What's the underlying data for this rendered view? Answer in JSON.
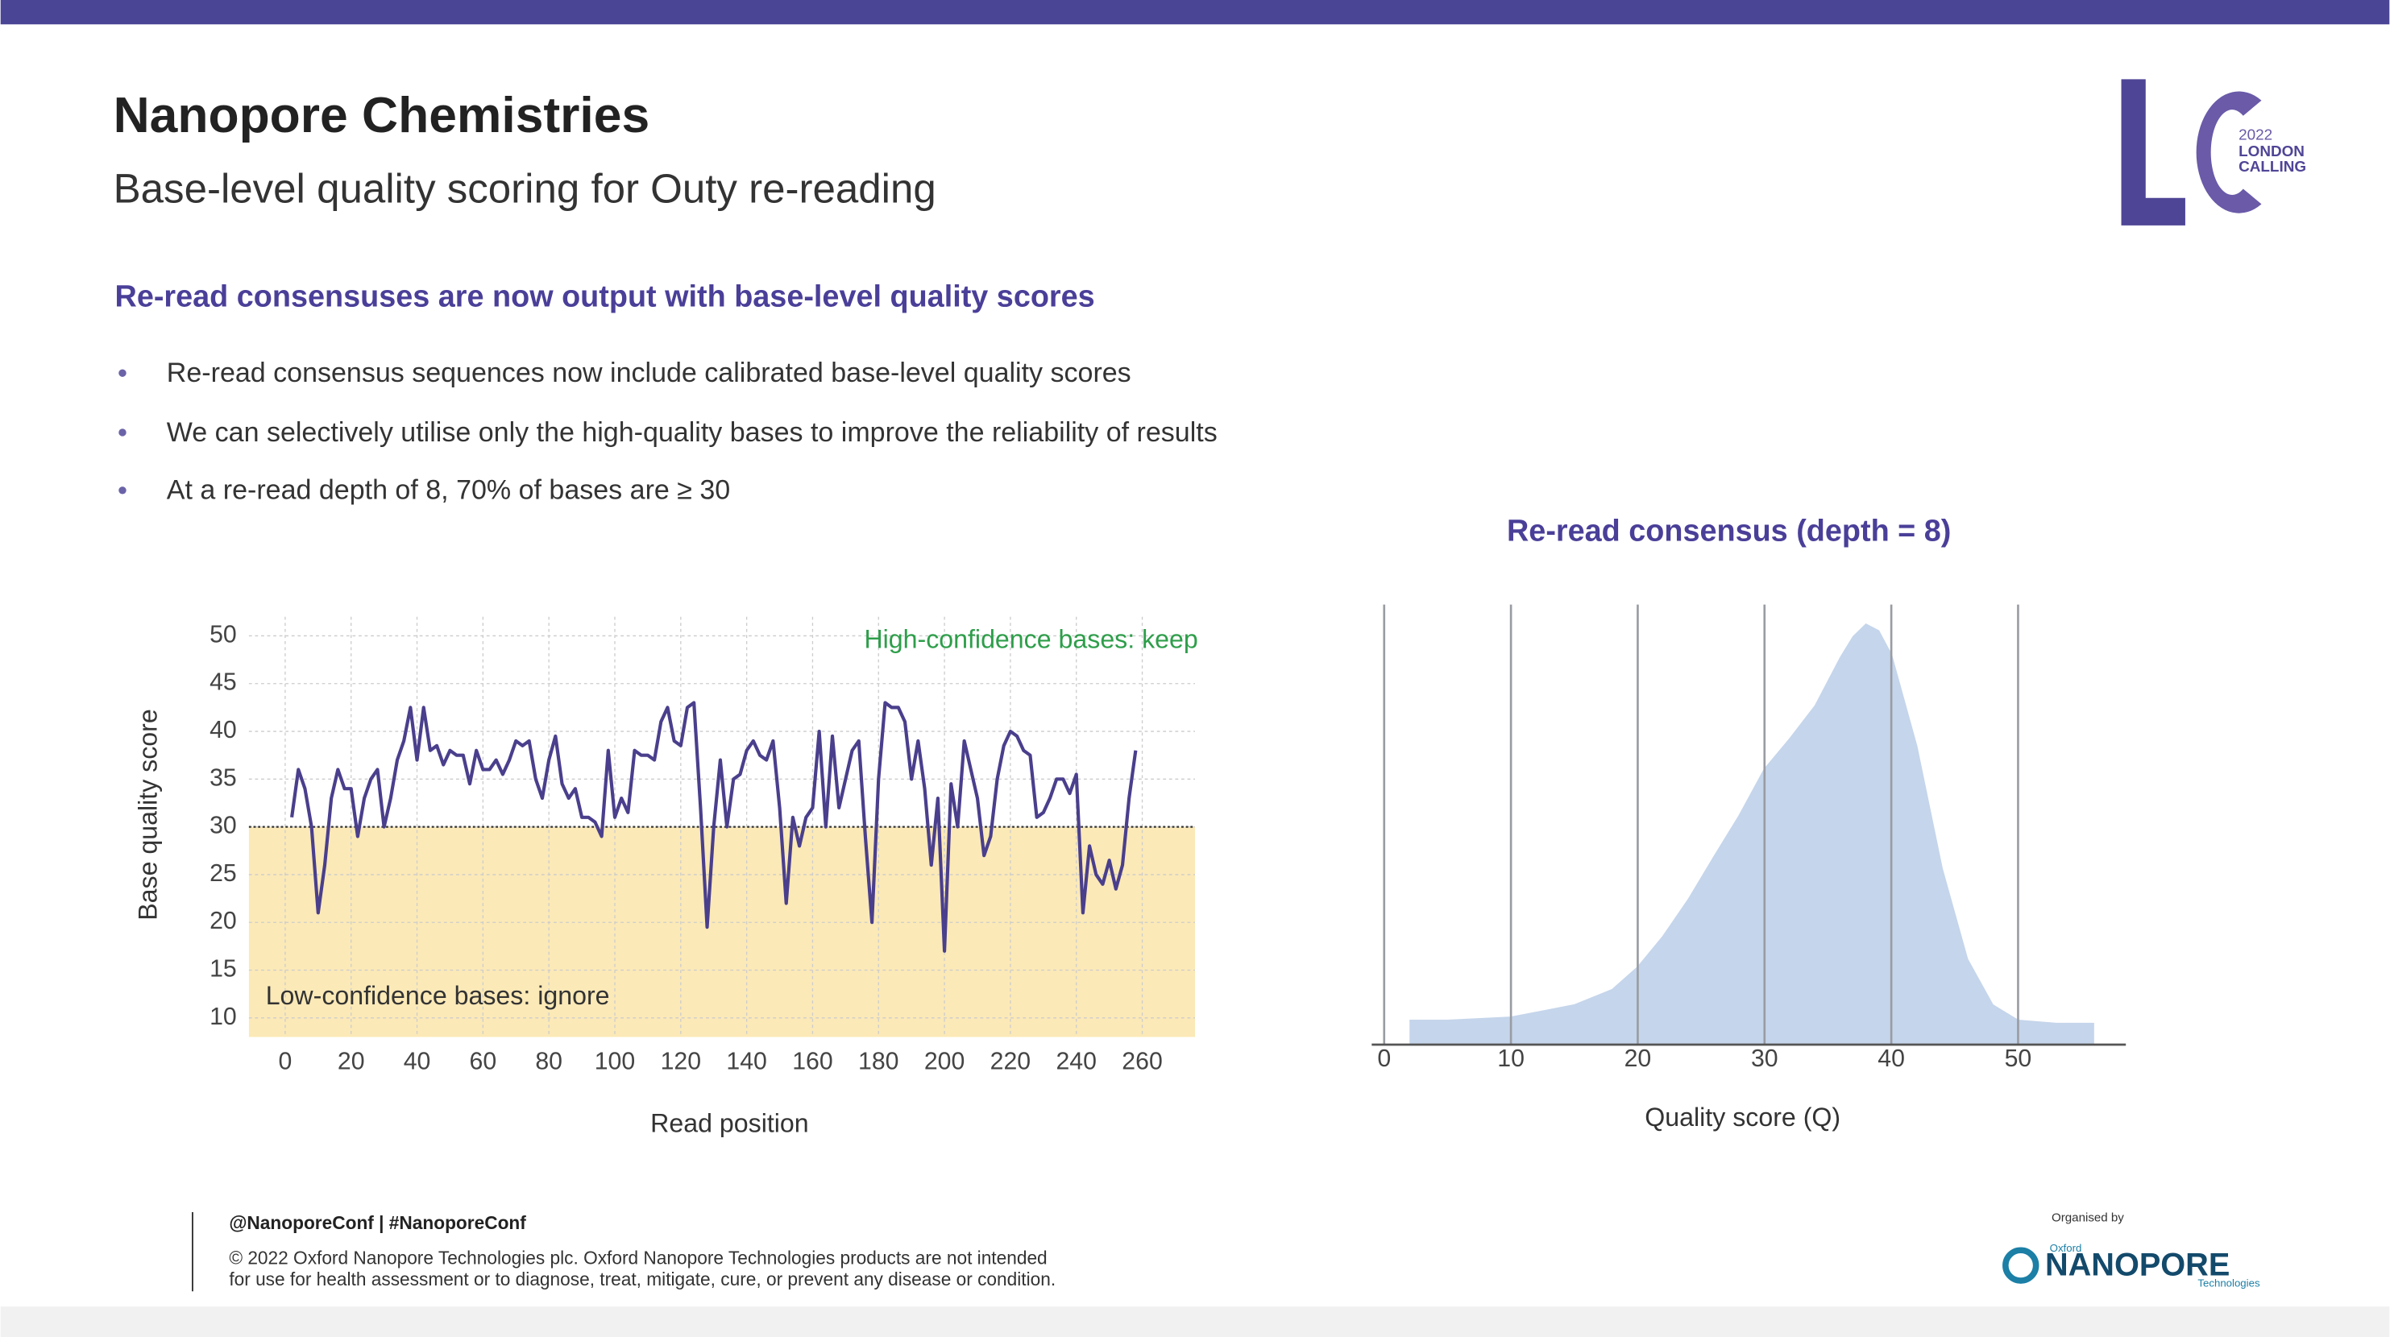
{
  "header": {
    "title": "Nanopore Chemistries",
    "subtitle": "Base-level quality scoring for Outy re-reading",
    "heading": "Re-read consensuses are now output with base-level quality scores"
  },
  "logo": {
    "year": "2022",
    "line1": "LONDON",
    "line2": "CALLING"
  },
  "bullets": [
    "Re-read consensus sequences now include calibrated base-level quality scores",
    "We can selectively utilise only the high-quality bases to improve the reliability of results",
    "At a re-read depth of 8, 70% of bases are ≥ 30"
  ],
  "footer": {
    "handle": "@NanoporeConf | #NanoporeConf",
    "legal1": "© 2022 Oxford Nanopore Technologies plc. Oxford Nanopore Technologies products are not intended",
    "legal2": "for use for health assessment or to diagnose, treat, mitigate, cure, or prevent any disease or condition.",
    "organised": "Organised by",
    "brand_small": "Oxford",
    "brand": "NANOPORE",
    "brand_sub": "Technologies"
  },
  "chart_data": [
    {
      "type": "line",
      "x_label": "Read position",
      "y_label": "Base quality score",
      "color": "#4a3f8c",
      "threshold": 30,
      "threshold_fill": "#fbe9b7",
      "grid": true,
      "annotations": [
        "High-confidence bases: keep",
        "Low-confidence bases: ignore"
      ],
      "annotation_colors": [
        "#2e9e4a",
        "#333333"
      ],
      "xlim": [
        -11,
        276
      ],
      "ylim": [
        8,
        52
      ],
      "xticks": [
        0,
        20,
        40,
        60,
        80,
        100,
        120,
        140,
        160,
        180,
        200,
        220,
        240,
        260
      ],
      "yticks": [
        10,
        15,
        20,
        25,
        30,
        35,
        40,
        45,
        50
      ],
      "x": [
        2,
        4,
        6,
        8,
        10,
        12,
        14,
        16,
        18,
        20,
        22,
        24,
        26,
        28,
        30,
        32,
        34,
        36,
        38,
        40,
        42,
        44,
        46,
        48,
        50,
        52,
        54,
        56,
        58,
        60,
        62,
        64,
        66,
        68,
        70,
        72,
        74,
        76,
        78,
        80,
        82,
        84,
        86,
        88,
        90,
        92,
        94,
        96,
        98,
        100,
        102,
        104,
        106,
        108,
        110,
        112,
        114,
        116,
        118,
        120,
        122,
        124,
        126,
        128,
        130,
        132,
        134,
        136,
        138,
        140,
        142,
        144,
        146,
        148,
        150,
        152,
        154,
        156,
        158,
        160,
        162,
        164,
        166,
        168,
        170,
        172,
        174,
        176,
        178,
        180,
        182,
        184,
        186,
        188,
        190,
        192,
        194,
        196,
        198,
        200,
        202,
        204,
        206,
        208,
        210,
        212,
        214,
        216,
        218,
        220,
        222,
        224,
        226,
        228,
        230,
        232,
        234,
        236,
        238,
        240,
        242,
        244,
        246,
        248,
        250,
        252,
        254,
        256,
        258
      ],
      "values": [
        31,
        36,
        34,
        30,
        21,
        26,
        33,
        36,
        34,
        34,
        29,
        33,
        35,
        36,
        30,
        33,
        37,
        39,
        42.5,
        37,
        42.5,
        38,
        38.5,
        36.5,
        38,
        37.5,
        37.5,
        34.5,
        38,
        36,
        36,
        37,
        35.5,
        37,
        39,
        38.5,
        39,
        35,
        33,
        37,
        39.5,
        34.5,
        33,
        34,
        31,
        31,
        30.5,
        29,
        38,
        31,
        33,
        31.5,
        38,
        37.5,
        37.5,
        37,
        41,
        42.5,
        39,
        38.5,
        42.5,
        43,
        32,
        19.5,
        30,
        37,
        30,
        35,
        35.5,
        38,
        39,
        37.5,
        37,
        39,
        32,
        22,
        31,
        28,
        31,
        32,
        40,
        30,
        39.5,
        32,
        35,
        38,
        39,
        29,
        20,
        35,
        43,
        42.5,
        42.5,
        41,
        35,
        39,
        34,
        26,
        33,
        17,
        34.5,
        30,
        39,
        36,
        33,
        27,
        29,
        35,
        38.5,
        40,
        39.5,
        38,
        37.5,
        31,
        31.5,
        33,
        35,
        35,
        33.5,
        35.5,
        21,
        28,
        25,
        24,
        26.5,
        23.5,
        26,
        33,
        38
      ]
    },
    {
      "type": "area",
      "title": "Re-read consensus (depth = 8)",
      "x_label": "Quality score (Q)",
      "color": "#c5d5eb",
      "grid": true,
      "xlim": [
        -0.5,
        58.5
      ],
      "ylim": [
        0,
        1
      ],
      "xticks": [
        0,
        10,
        20,
        30,
        40,
        50
      ],
      "x": [
        2,
        5,
        10,
        15,
        18,
        20,
        22,
        24,
        26,
        28,
        30,
        32,
        34,
        36,
        37,
        38,
        39,
        40,
        42,
        44,
        46,
        48,
        50,
        53,
        56
      ],
      "values": [
        0.055,
        0.055,
        0.062,
        0.09,
        0.125,
        0.176,
        0.246,
        0.33,
        0.426,
        0.52,
        0.626,
        0.695,
        0.77,
        0.88,
        0.927,
        0.955,
        0.94,
        0.886,
        0.678,
        0.4,
        0.194,
        0.09,
        0.055,
        0.048,
        0.048
      ]
    }
  ]
}
